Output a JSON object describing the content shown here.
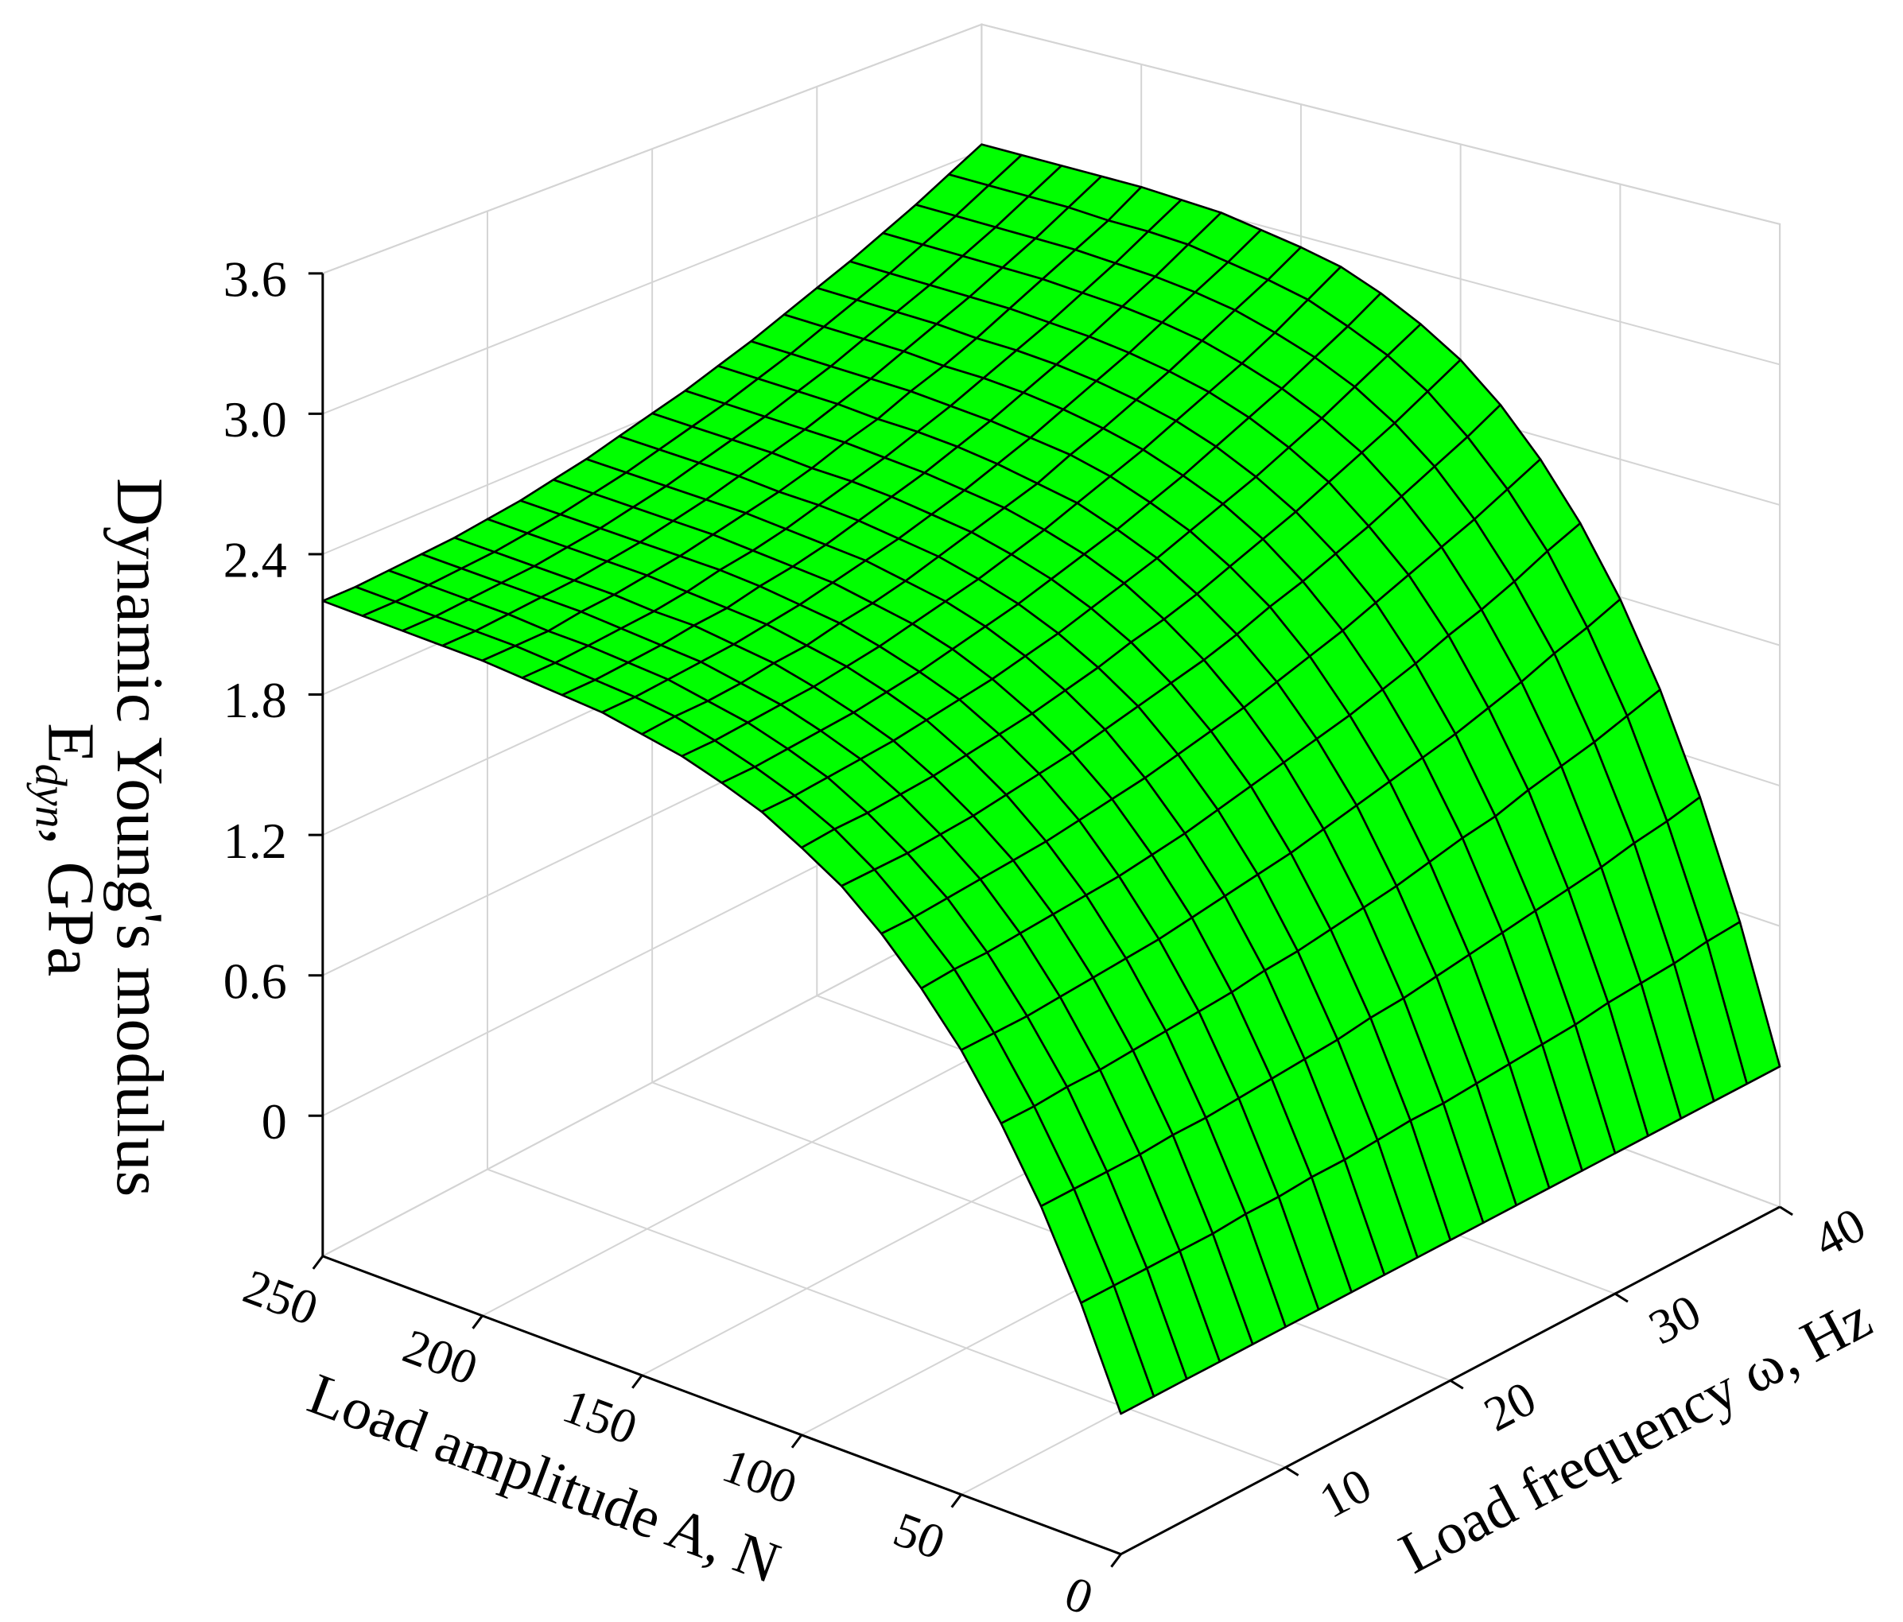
{
  "chart_data": {
    "type": "surface3d",
    "x_label": "Load amplitude  A, N",
    "y_label": "Load frequency  ω, Hz",
    "z_label": "Dynamic Young's modulus",
    "z_label_line2": {
      "main": "E",
      "sub": "dyn",
      "rest": ", GPa"
    },
    "color": "#00ff00",
    "grid": true,
    "xlim": [
      0,
      250
    ],
    "ylim": [
      0,
      40
    ],
    "zlim": [
      -0.6,
      3.6
    ],
    "xticks": [
      0,
      50,
      100,
      150,
      200,
      250
    ],
    "yticks": [
      10,
      20,
      30,
      40
    ],
    "zticks": [
      0,
      0.6,
      1.2,
      1.8,
      2.4,
      {
        "value": 3,
        "label": "3.0"
      },
      3.6
    ],
    "x": [
      0,
      12.5,
      25,
      37.5,
      50,
      62.5,
      75,
      87.5,
      100,
      112.5,
      125,
      137.5,
      150,
      162.5,
      175,
      187.5,
      200,
      212.5,
      225,
      237.5,
      250
    ],
    "y": [
      0,
      2,
      4,
      6,
      8,
      10,
      12,
      14,
      16,
      18,
      20,
      22,
      24,
      26,
      28,
      30,
      32,
      34,
      36,
      38,
      40
    ],
    "z": [
      [
        0,
        0,
        0,
        0,
        0,
        0,
        0,
        0,
        0,
        0,
        0,
        0,
        0,
        0,
        0,
        0,
        0,
        0,
        0,
        0,
        0
      ],
      [
        0.41,
        0.41,
        0.41,
        0.41,
        0.41,
        0.42,
        0.42,
        0.43,
        0.43,
        0.44,
        0.45,
        0.45,
        0.46,
        0.47,
        0.48,
        0.49,
        0.51,
        0.52,
        0.53,
        0.55,
        0.56
      ],
      [
        0.76,
        0.76,
        0.76,
        0.76,
        0.77,
        0.77,
        0.78,
        0.79,
        0.8,
        0.81,
        0.83,
        0.84,
        0.86,
        0.88,
        0.9,
        0.92,
        0.94,
        0.96,
        0.99,
        1.01,
        1.04
      ],
      [
        1.05,
        1.05,
        1.06,
        1.06,
        1.07,
        1.08,
        1.09,
        1.1,
        1.12,
        1.13,
        1.15,
        1.17,
        1.19,
        1.22,
        1.25,
        1.27,
        1.31,
        1.34,
        1.37,
        1.41,
        1.45
      ],
      [
        1.3,
        1.3,
        1.3,
        1.31,
        1.32,
        1.33,
        1.34,
        1.36,
        1.38,
        1.4,
        1.42,
        1.45,
        1.48,
        1.51,
        1.54,
        1.57,
        1.61,
        1.65,
        1.7,
        1.74,
        1.79
      ],
      [
        1.5,
        1.51,
        1.51,
        1.52,
        1.53,
        1.54,
        1.55,
        1.57,
        1.59,
        1.62,
        1.65,
        1.68,
        1.71,
        1.74,
        1.78,
        1.82,
        1.87,
        1.91,
        1.96,
        2.02,
        2.07
      ],
      [
        1.67,
        1.67,
        1.68,
        1.69,
        1.7,
        1.71,
        1.73,
        1.75,
        1.77,
        1.8,
        1.83,
        1.86,
        1.9,
        1.94,
        1.98,
        2.03,
        2.08,
        2.13,
        2.18,
        2.24,
        2.3
      ],
      [
        1.81,
        1.81,
        1.81,
        1.82,
        1.83,
        1.85,
        1.87,
        1.89,
        1.92,
        1.95,
        1.98,
        2.01,
        2.05,
        2.1,
        2.14,
        2.19,
        2.24,
        2.3,
        2.36,
        2.42,
        2.49
      ],
      [
        1.91,
        1.92,
        1.92,
        1.93,
        1.94,
        1.96,
        1.98,
        2.0,
        2.03,
        2.06,
        2.1,
        2.13,
        2.17,
        2.22,
        2.27,
        2.32,
        2.38,
        2.44,
        2.5,
        2.57,
        2.64
      ],
      [
        2.0,
        2.0,
        2.01,
        2.02,
        2.03,
        2.05,
        2.07,
        2.09,
        2.12,
        2.15,
        2.19,
        2.23,
        2.27,
        2.32,
        2.37,
        2.42,
        2.48,
        2.54,
        2.61,
        2.68,
        2.75
      ],
      [
        2.06,
        2.06,
        2.07,
        2.08,
        2.09,
        2.11,
        2.13,
        2.16,
        2.19,
        2.22,
        2.26,
        2.3,
        2.34,
        2.39,
        2.44,
        2.5,
        2.56,
        2.62,
        2.69,
        2.76,
        2.84
      ],
      [
        2.11,
        2.11,
        2.12,
        2.13,
        2.14,
        2.16,
        2.18,
        2.21,
        2.24,
        2.27,
        2.31,
        2.35,
        2.4,
        2.45,
        2.5,
        2.56,
        2.62,
        2.68,
        2.75,
        2.83,
        2.91
      ],
      [
        2.14,
        2.15,
        2.15,
        2.16,
        2.18,
        2.19,
        2.22,
        2.24,
        2.27,
        2.31,
        2.35,
        2.39,
        2.43,
        2.49,
        2.54,
        2.6,
        2.66,
        2.73,
        2.8,
        2.87,
        2.95
      ],
      [
        2.17,
        2.17,
        2.18,
        2.19,
        2.2,
        2.22,
        2.24,
        2.27,
        2.3,
        2.33,
        2.37,
        2.41,
        2.46,
        2.51,
        2.57,
        2.63,
        2.69,
        2.76,
        2.83,
        2.9,
        2.98
      ],
      [
        2.18,
        2.18,
        2.19,
        2.2,
        2.22,
        2.23,
        2.26,
        2.28,
        2.31,
        2.35,
        2.39,
        2.43,
        2.48,
        2.53,
        2.59,
        2.65,
        2.71,
        2.78,
        2.85,
        2.93,
        3.01
      ],
      [
        2.19,
        2.19,
        2.2,
        2.21,
        2.22,
        2.24,
        2.27,
        2.29,
        2.32,
        2.36,
        2.4,
        2.44,
        2.49,
        2.54,
        2.6,
        2.66,
        2.72,
        2.79,
        2.86,
        2.94,
        3.02
      ],
      [
        2.2,
        2.2,
        2.2,
        2.22,
        2.23,
        2.25,
        2.27,
        2.3,
        2.33,
        2.36,
        2.4,
        2.45,
        2.49,
        2.55,
        2.6,
        2.66,
        2.73,
        2.8,
        2.87,
        2.94,
        3.03
      ],
      [
        2.2,
        2.2,
        2.21,
        2.22,
        2.23,
        2.25,
        2.27,
        2.3,
        2.33,
        2.37,
        2.41,
        2.45,
        2.5,
        2.55,
        2.61,
        2.67,
        2.73,
        2.8,
        2.87,
        2.95,
        3.03
      ],
      [
        2.2,
        2.2,
        2.21,
        2.22,
        2.23,
        2.25,
        2.27,
        2.3,
        2.33,
        2.37,
        2.41,
        2.45,
        2.5,
        2.55,
        2.61,
        2.67,
        2.73,
        2.8,
        2.87,
        2.95,
        3.03
      ],
      [
        2.2,
        2.2,
        2.21,
        2.22,
        2.23,
        2.25,
        2.27,
        2.3,
        2.33,
        2.37,
        2.41,
        2.45,
        2.5,
        2.55,
        2.61,
        2.67,
        2.73,
        2.8,
        2.87,
        2.95,
        3.03
      ],
      [
        2.2,
        2.2,
        2.21,
        2.22,
        2.23,
        2.25,
        2.27,
        2.3,
        2.33,
        2.37,
        2.41,
        2.45,
        2.5,
        2.55,
        2.61,
        2.67,
        2.73,
        2.8,
        2.87,
        2.95,
        3.03
      ]
    ]
  }
}
